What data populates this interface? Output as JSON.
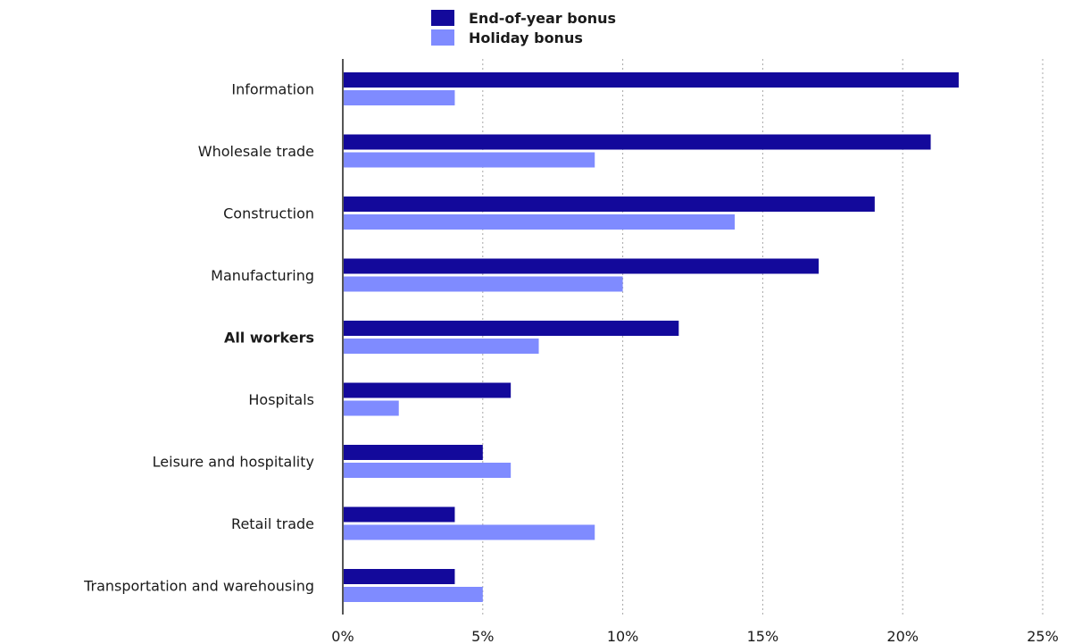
{
  "chart_data": {
    "type": "bar",
    "orientation": "horizontal",
    "categories": [
      "Information",
      "Wholesale trade",
      "Construction",
      "Manufacturing",
      "All workers",
      "Hospitals",
      "Leisure and hospitality",
      "Retail trade",
      "Transportation and warehousing"
    ],
    "bold_categories": [
      "All workers"
    ],
    "series": [
      {
        "name": "End-of-year bonus",
        "color": "#13099b",
        "values": [
          22,
          21,
          19,
          17,
          12,
          6,
          5,
          4,
          4
        ]
      },
      {
        "name": "Holiday bonus",
        "color": "#7f8bff",
        "values": [
          4,
          9,
          14,
          10,
          7,
          2,
          6,
          9,
          5
        ]
      }
    ],
    "x_ticks": [
      0,
      5,
      10,
      15,
      20,
      25
    ],
    "x_tick_labels": [
      "0%",
      "5%",
      "10%",
      "15%",
      "20%",
      "25%"
    ],
    "xlim": [
      0,
      25
    ],
    "grid": "vertical-dotted",
    "legend_position": "top-center"
  }
}
